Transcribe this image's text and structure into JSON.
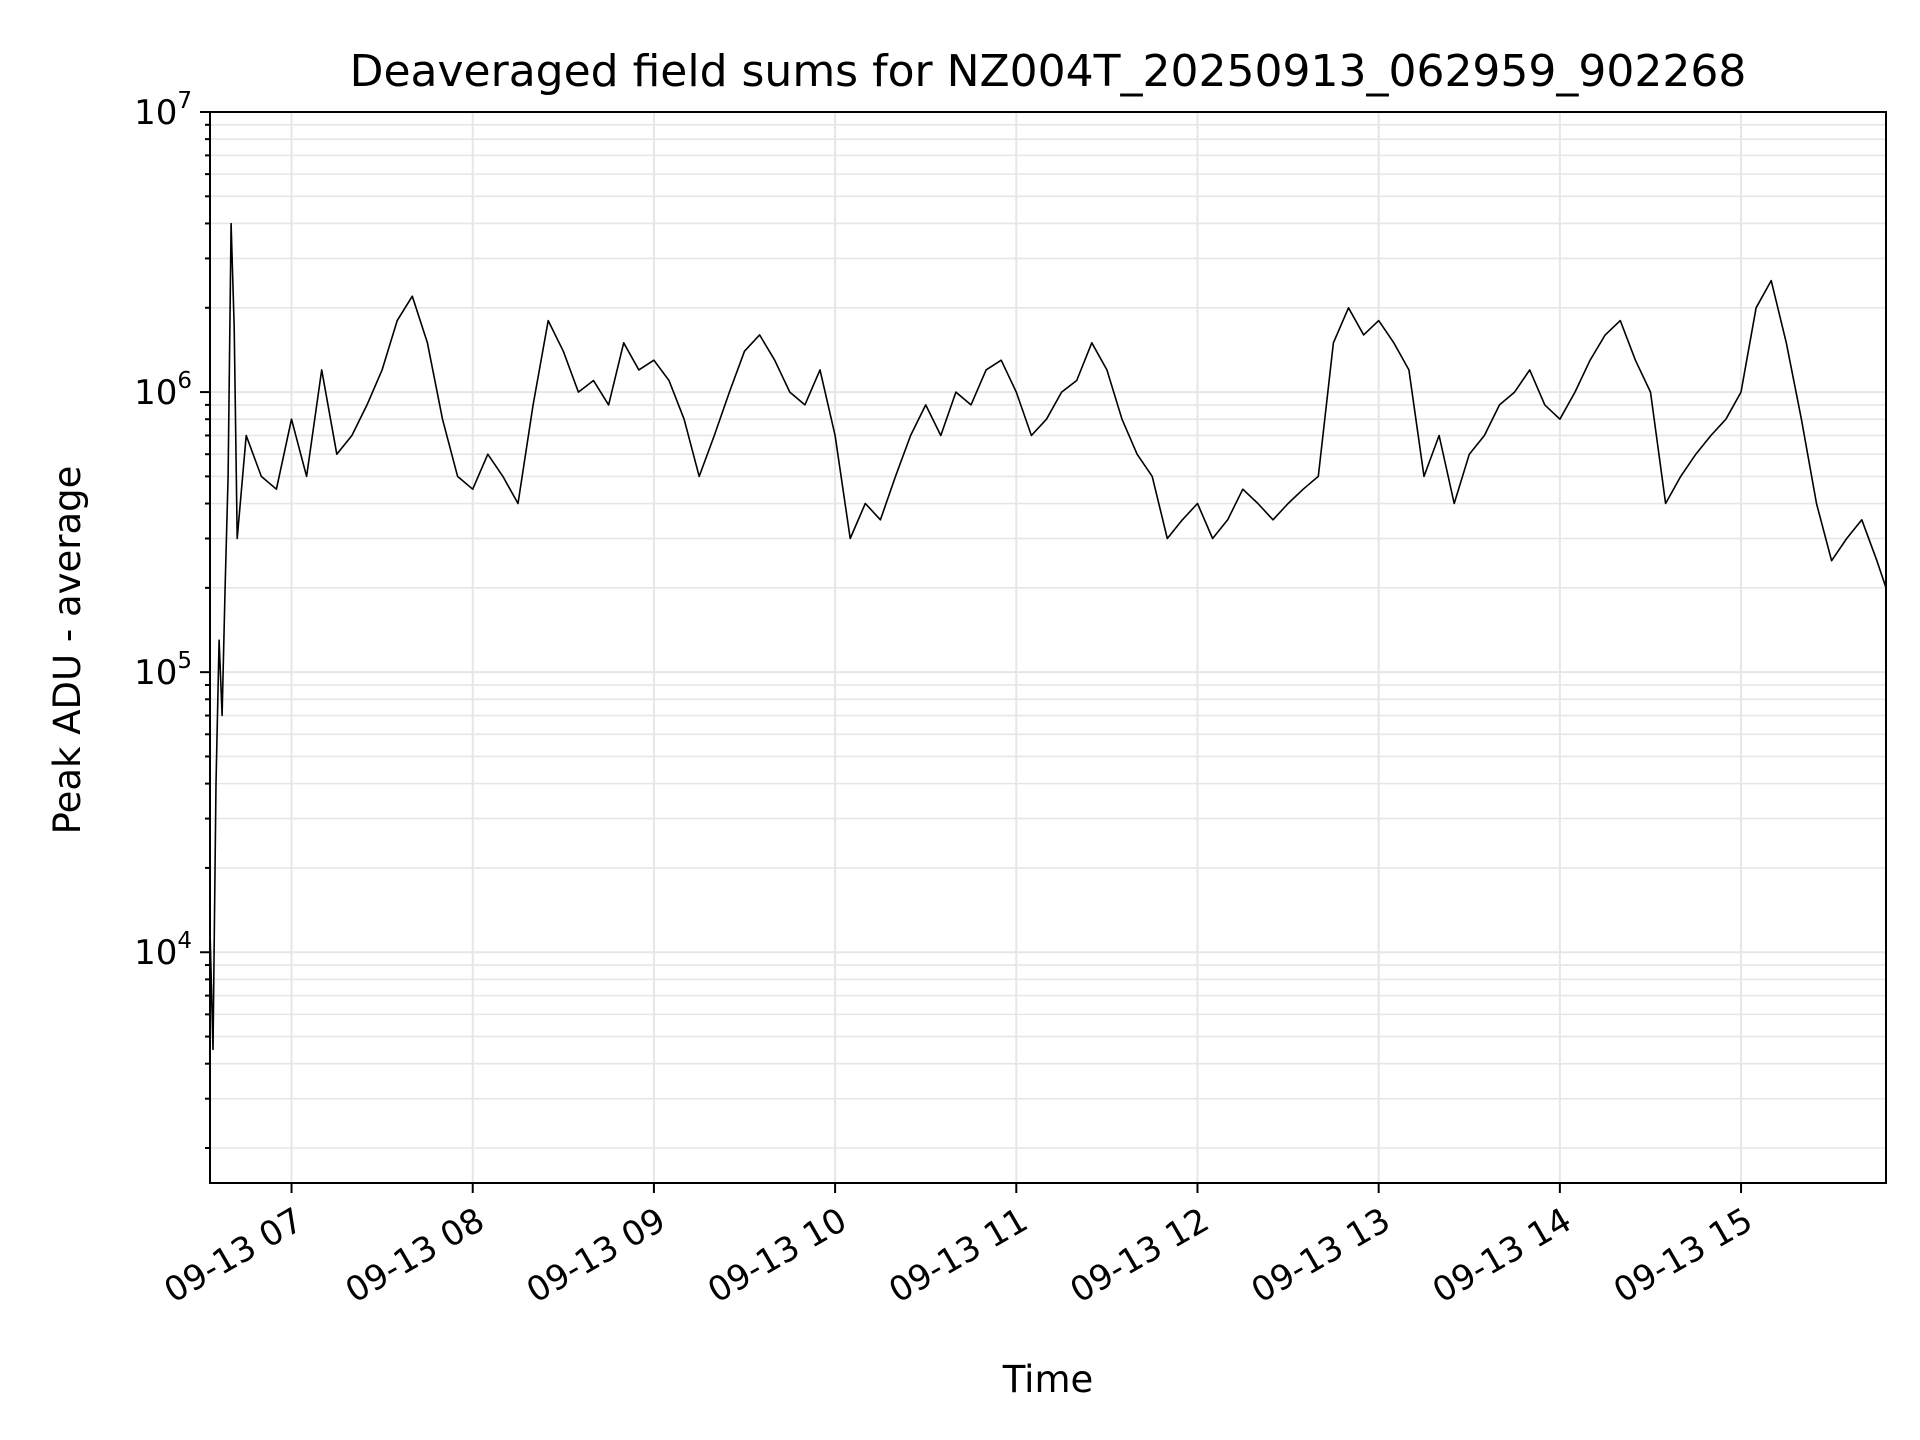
{
  "chart_data": {
    "type": "line",
    "title": "Deaveraged field sums for NZ004T_20250913_062959_902268",
    "xlabel": "Time",
    "ylabel": "Peak ADU - average",
    "yscale": "log",
    "ylim": [
      1500,
      10000000
    ],
    "xlim": [
      "2025-09-13 06:33",
      "2025-09-13 15:48"
    ],
    "grid": true,
    "line_color": "#000000",
    "grid_color": "#e6e6e6",
    "x_ticks": [
      {
        "t": "2025-09-13 07:00",
        "label": "09-13 07"
      },
      {
        "t": "2025-09-13 08:00",
        "label": "09-13 08"
      },
      {
        "t": "2025-09-13 09:00",
        "label": "09-13 09"
      },
      {
        "t": "2025-09-13 10:00",
        "label": "09-13 10"
      },
      {
        "t": "2025-09-13 11:00",
        "label": "09-13 11"
      },
      {
        "t": "2025-09-13 12:00",
        "label": "09-13 12"
      },
      {
        "t": "2025-09-13 13:00",
        "label": "09-13 13"
      },
      {
        "t": "2025-09-13 14:00",
        "label": "09-13 14"
      },
      {
        "t": "2025-09-13 15:00",
        "label": "09-13 15"
      }
    ],
    "y_ticks": [
      {
        "value": 10000,
        "base": "10",
        "exp": "4"
      },
      {
        "value": 100000,
        "base": "10",
        "exp": "5"
      },
      {
        "value": 1000000,
        "base": "10",
        "exp": "6"
      },
      {
        "value": 10000000,
        "base": "10",
        "exp": "7"
      }
    ],
    "series": [
      {
        "points": [
          [
            "2025-09-13 06:33",
            12000
          ],
          [
            "2025-09-13 06:34",
            4500
          ],
          [
            "2025-09-13 06:35",
            40000
          ],
          [
            "2025-09-13 06:36",
            130000
          ],
          [
            "2025-09-13 06:37",
            70000
          ],
          [
            "2025-09-13 06:38",
            200000
          ],
          [
            "2025-09-13 06:39",
            500000
          ],
          [
            "2025-09-13 06:40",
            4000000
          ],
          [
            "2025-09-13 06:41",
            1700000
          ],
          [
            "2025-09-13 06:42",
            300000
          ],
          [
            "2025-09-13 06:45",
            700000
          ],
          [
            "2025-09-13 06:50",
            500000
          ],
          [
            "2025-09-13 06:55",
            450000
          ],
          [
            "2025-09-13 07:00",
            800000
          ],
          [
            "2025-09-13 07:05",
            500000
          ],
          [
            "2025-09-13 07:10",
            1200000
          ],
          [
            "2025-09-13 07:15",
            600000
          ],
          [
            "2025-09-13 07:20",
            700000
          ],
          [
            "2025-09-13 07:25",
            900000
          ],
          [
            "2025-09-13 07:30",
            1200000
          ],
          [
            "2025-09-13 07:35",
            1800000
          ],
          [
            "2025-09-13 07:40",
            2200000
          ],
          [
            "2025-09-13 07:45",
            1500000
          ],
          [
            "2025-09-13 07:50",
            800000
          ],
          [
            "2025-09-13 07:55",
            500000
          ],
          [
            "2025-09-13 08:00",
            450000
          ],
          [
            "2025-09-13 08:05",
            600000
          ],
          [
            "2025-09-13 08:10",
            500000
          ],
          [
            "2025-09-13 08:15",
            400000
          ],
          [
            "2025-09-13 08:20",
            900000
          ],
          [
            "2025-09-13 08:25",
            1800000
          ],
          [
            "2025-09-13 08:30",
            1400000
          ],
          [
            "2025-09-13 08:35",
            1000000
          ],
          [
            "2025-09-13 08:40",
            1100000
          ],
          [
            "2025-09-13 08:45",
            900000
          ],
          [
            "2025-09-13 08:50",
            1500000
          ],
          [
            "2025-09-13 08:55",
            1200000
          ],
          [
            "2025-09-13 09:00",
            1300000
          ],
          [
            "2025-09-13 09:05",
            1100000
          ],
          [
            "2025-09-13 09:10",
            800000
          ],
          [
            "2025-09-13 09:15",
            500000
          ],
          [
            "2025-09-13 09:20",
            700000
          ],
          [
            "2025-09-13 09:25",
            1000000
          ],
          [
            "2025-09-13 09:30",
            1400000
          ],
          [
            "2025-09-13 09:35",
            1600000
          ],
          [
            "2025-09-13 09:40",
            1300000
          ],
          [
            "2025-09-13 09:45",
            1000000
          ],
          [
            "2025-09-13 09:50",
            900000
          ],
          [
            "2025-09-13 09:55",
            1200000
          ],
          [
            "2025-09-13 10:00",
            700000
          ],
          [
            "2025-09-13 10:05",
            300000
          ],
          [
            "2025-09-13 10:10",
            400000
          ],
          [
            "2025-09-13 10:15",
            350000
          ],
          [
            "2025-09-13 10:20",
            500000
          ],
          [
            "2025-09-13 10:25",
            700000
          ],
          [
            "2025-09-13 10:30",
            900000
          ],
          [
            "2025-09-13 10:35",
            700000
          ],
          [
            "2025-09-13 10:40",
            1000000
          ],
          [
            "2025-09-13 10:45",
            900000
          ],
          [
            "2025-09-13 10:50",
            1200000
          ],
          [
            "2025-09-13 10:55",
            1300000
          ],
          [
            "2025-09-13 11:00",
            1000000
          ],
          [
            "2025-09-13 11:05",
            700000
          ],
          [
            "2025-09-13 11:10",
            800000
          ],
          [
            "2025-09-13 11:15",
            1000000
          ],
          [
            "2025-09-13 11:20",
            1100000
          ],
          [
            "2025-09-13 11:25",
            1500000
          ],
          [
            "2025-09-13 11:30",
            1200000
          ],
          [
            "2025-09-13 11:35",
            800000
          ],
          [
            "2025-09-13 11:40",
            600000
          ],
          [
            "2025-09-13 11:45",
            500000
          ],
          [
            "2025-09-13 11:50",
            300000
          ],
          [
            "2025-09-13 11:55",
            350000
          ],
          [
            "2025-09-13 12:00",
            400000
          ],
          [
            "2025-09-13 12:05",
            300000
          ],
          [
            "2025-09-13 12:10",
            350000
          ],
          [
            "2025-09-13 12:15",
            450000
          ],
          [
            "2025-09-13 12:20",
            400000
          ],
          [
            "2025-09-13 12:25",
            350000
          ],
          [
            "2025-09-13 12:30",
            400000
          ],
          [
            "2025-09-13 12:35",
            450000
          ],
          [
            "2025-09-13 12:40",
            500000
          ],
          [
            "2025-09-13 12:45",
            1500000
          ],
          [
            "2025-09-13 12:50",
            2000000
          ],
          [
            "2025-09-13 12:55",
            1600000
          ],
          [
            "2025-09-13 13:00",
            1800000
          ],
          [
            "2025-09-13 13:05",
            1500000
          ],
          [
            "2025-09-13 13:10",
            1200000
          ],
          [
            "2025-09-13 13:15",
            500000
          ],
          [
            "2025-09-13 13:20",
            700000
          ],
          [
            "2025-09-13 13:25",
            400000
          ],
          [
            "2025-09-13 13:30",
            600000
          ],
          [
            "2025-09-13 13:35",
            700000
          ],
          [
            "2025-09-13 13:40",
            900000
          ],
          [
            "2025-09-13 13:45",
            1000000
          ],
          [
            "2025-09-13 13:50",
            1200000
          ],
          [
            "2025-09-13 13:55",
            900000
          ],
          [
            "2025-09-13 14:00",
            800000
          ],
          [
            "2025-09-13 14:05",
            1000000
          ],
          [
            "2025-09-13 14:10",
            1300000
          ],
          [
            "2025-09-13 14:15",
            1600000
          ],
          [
            "2025-09-13 14:20",
            1800000
          ],
          [
            "2025-09-13 14:25",
            1300000
          ],
          [
            "2025-09-13 14:30",
            1000000
          ],
          [
            "2025-09-13 14:35",
            400000
          ],
          [
            "2025-09-13 14:40",
            500000
          ],
          [
            "2025-09-13 14:45",
            600000
          ],
          [
            "2025-09-13 14:50",
            700000
          ],
          [
            "2025-09-13 14:55",
            800000
          ],
          [
            "2025-09-13 15:00",
            1000000
          ],
          [
            "2025-09-13 15:05",
            2000000
          ],
          [
            "2025-09-13 15:10",
            2500000
          ],
          [
            "2025-09-13 15:15",
            1500000
          ],
          [
            "2025-09-13 15:20",
            800000
          ],
          [
            "2025-09-13 15:25",
            400000
          ],
          [
            "2025-09-13 15:30",
            250000
          ],
          [
            "2025-09-13 15:35",
            300000
          ],
          [
            "2025-09-13 15:40",
            350000
          ],
          [
            "2025-09-13 15:45",
            250000
          ],
          [
            "2025-09-13 15:48",
            200000
          ]
        ]
      }
    ]
  }
}
